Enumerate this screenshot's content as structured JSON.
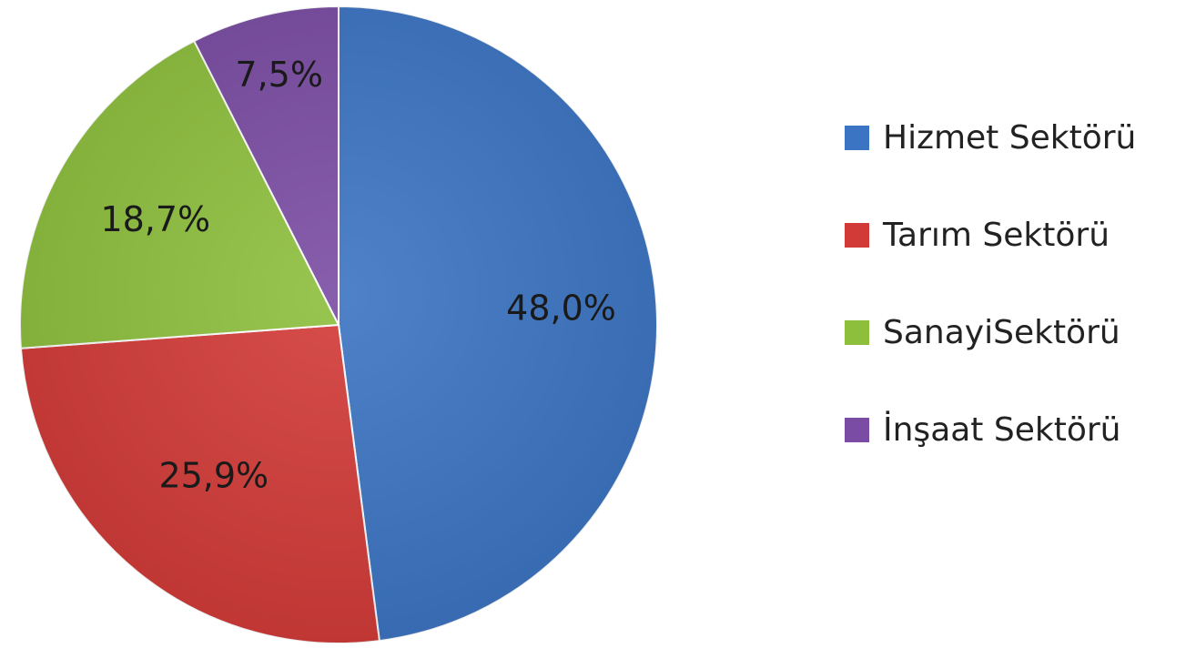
{
  "chart_data": {
    "type": "pie",
    "title": "",
    "categories": [
      "Hizmet Sektörü",
      "Tarım Sektörü",
      "SanayiSektörü",
      "İnşaat Sektörü"
    ],
    "values": [
      48.0,
      25.9,
      18.7,
      7.5
    ],
    "data_labels": [
      "48,0%",
      "25,9%",
      "18,7%",
      "7,5%"
    ],
    "colors": [
      "#3b74c2",
      "#d23a37",
      "#8dbf3c",
      "#7a4ca3"
    ],
    "start_angle": "12 o'clock",
    "direction": "clockwise",
    "legend": {
      "placement": "right",
      "items": [
        {
          "label": "Hizmet Sektörü",
          "color": "#3b74c2"
        },
        {
          "label": "Tarım Sektörü",
          "color": "#d23a37"
        },
        {
          "label": "SanayiSektörü",
          "color": "#8dbf3c"
        },
        {
          "label": "İnşaat Sektörü",
          "color": "#7a4ca3"
        }
      ]
    }
  }
}
